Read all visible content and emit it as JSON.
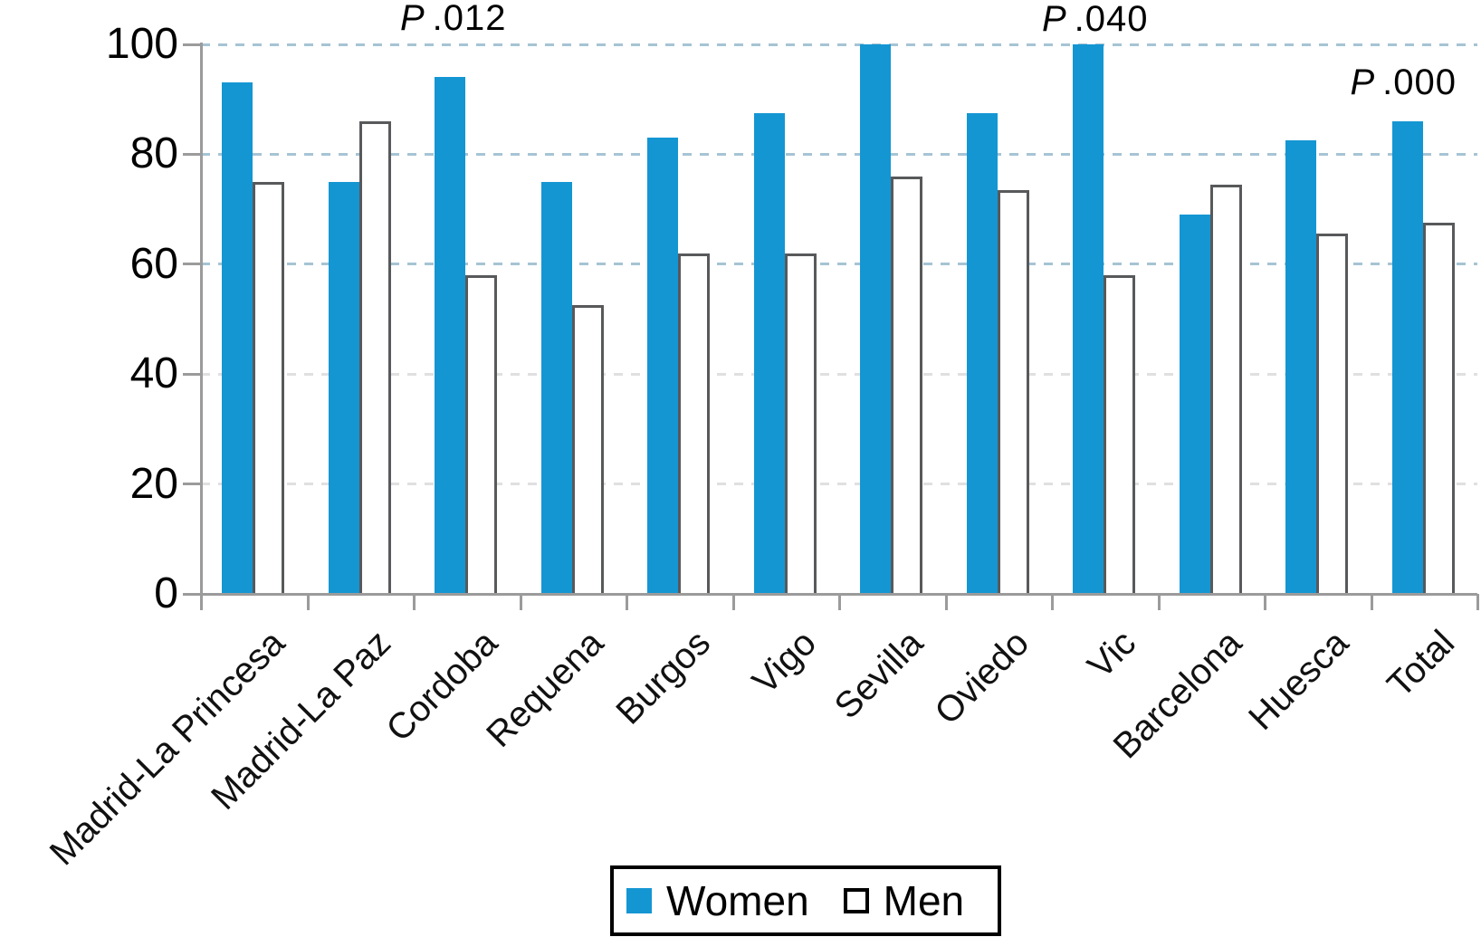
{
  "chart_data": {
    "type": "bar",
    "title": "",
    "xlabel": "",
    "ylabel": "",
    "categories": [
      "Madrid-La Princesa",
      "Madrid-La Paz",
      "Cordoba",
      "Requena",
      "Burgos",
      "Vigo",
      "Sevilla",
      "Oviedo",
      "Vic",
      "Barcelona",
      "Huesca",
      "Total"
    ],
    "series": [
      {
        "name": "Women",
        "values": [
          93,
          75,
          94,
          75,
          83,
          87.5,
          100,
          87.5,
          100,
          69,
          82.5,
          86
        ]
      },
      {
        "name": "Men",
        "values": [
          75,
          86,
          58,
          52.5,
          62,
          62,
          76,
          73.5,
          58,
          74.5,
          65.5,
          67.5
        ]
      }
    ],
    "ylim": [
      0,
      100
    ],
    "yticks": [
      "0",
      "20",
      "40",
      "60",
      "80",
      "100"
    ],
    "grid": "horizontal dashed",
    "legend_position": "bottom center",
    "annotations": [
      {
        "prefix": "P",
        "value": ".012",
        "category": "Cordoba"
      },
      {
        "prefix": "P",
        "value": ".040",
        "category": "Vic"
      },
      {
        "prefix": "P",
        "value": ".000",
        "category": "Total"
      }
    ]
  },
  "legend": {
    "items": [
      {
        "label": "Women"
      },
      {
        "label": "Men"
      }
    ]
  },
  "colors": {
    "bar_blue": "#1496d3",
    "men_fill": "#ffffff",
    "men_outline": "#58595b",
    "grid_blue": "#a6c4d4",
    "grid_grey": "#e0e0e0",
    "axis_grey": "#9b9b9b",
    "text": "#000000"
  }
}
